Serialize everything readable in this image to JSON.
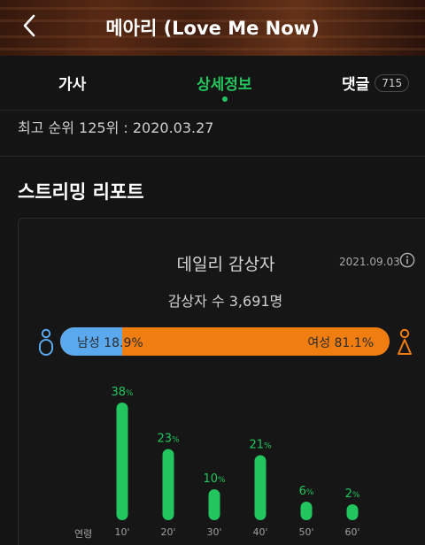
{
  "header": {
    "title": "메아리 (Love Me Now)"
  },
  "tabs": {
    "lyrics": "가사",
    "detail": "상세정보",
    "comments": "댓글",
    "comments_count": "715"
  },
  "peak_rank": "최고 순위 125위 : 2020.03.27",
  "streaming_report": {
    "title": "스트리밍 리포트",
    "card_title": "데일리 감상자",
    "date": "2021.09.03",
    "listeners": "감상자 수 3,691명",
    "male_label": "남성 18.9%",
    "female_label": "여성 81.1%",
    "male_share": 18.9,
    "female_share": 81.1,
    "colors": {
      "male": "#5aa8ee",
      "female": "#f07d10",
      "bars": "#22c55e"
    },
    "icons": [
      "male-icon",
      "female-icon",
      "info-icon",
      "back-chevron-icon"
    ]
  },
  "chart_data": {
    "type": "bar",
    "xlabel": "연령",
    "categories": [
      "10'",
      "20'",
      "30'",
      "40'",
      "50'",
      "60'"
    ],
    "values": [
      38,
      23,
      10,
      21,
      6,
      2
    ],
    "unit": "%"
  }
}
